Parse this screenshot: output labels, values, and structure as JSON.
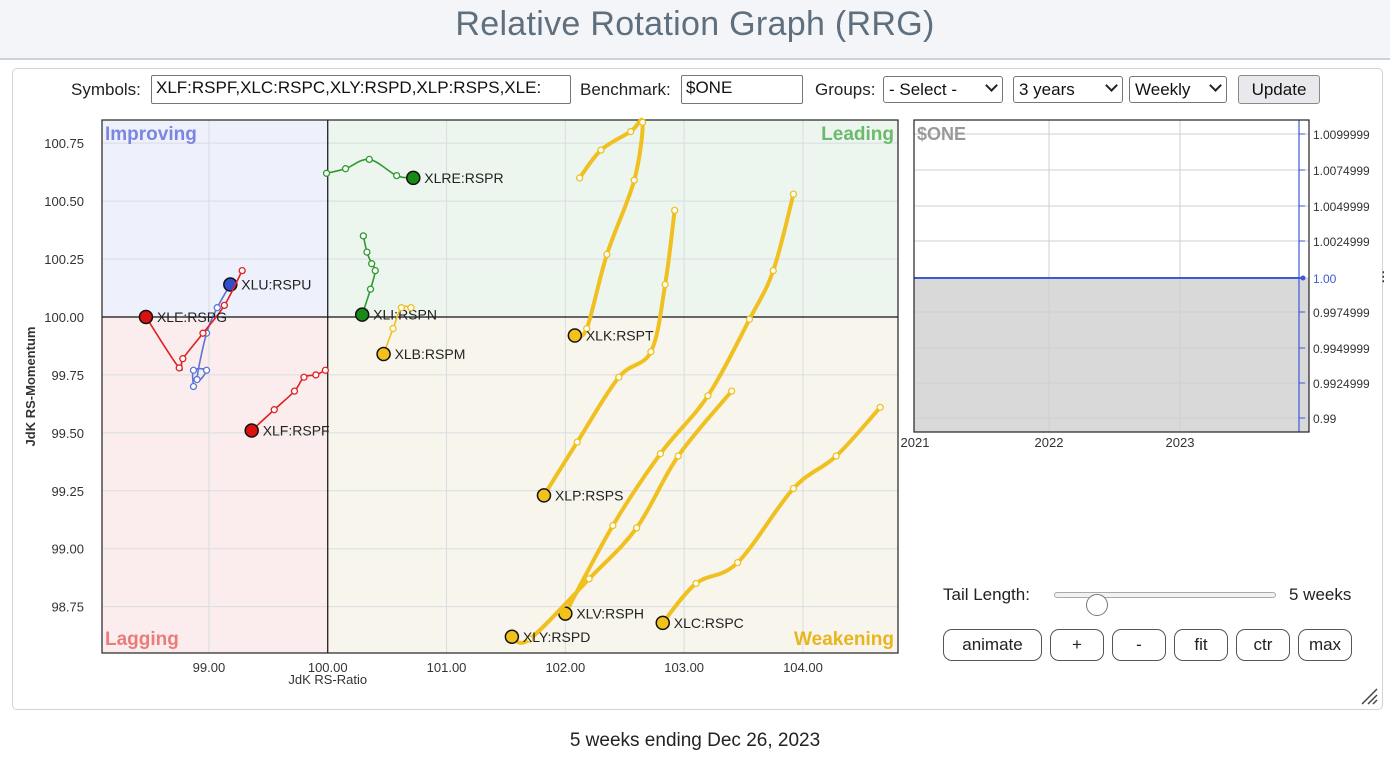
{
  "page_title": "Relative Rotation Graph (RRG)",
  "controls": {
    "symbols_label": "Symbols:",
    "symbols_value": "XLF:RSPF,XLC:RSPC,XLY:RSPD,XLP:RSPS,XLE:",
    "benchmark_label": "Benchmark:",
    "benchmark_value": "$ONE",
    "groups_label": "Groups:",
    "groups_selected": "- Select -",
    "period_selected": "3 years",
    "interval_selected": "Weekly",
    "update_label": "Update"
  },
  "chart_data": {
    "type": "scatter",
    "xlabel": "JdK RS-Ratio",
    "ylabel": "JdK RS-Momentum",
    "x_ticks": [
      "99.00",
      "100.00",
      "101.00",
      "102.00",
      "103.00",
      "104.00"
    ],
    "y_ticks": [
      "100.75",
      "100.50",
      "100.25",
      "100.00",
      "99.75",
      "99.50",
      "99.25",
      "99.00",
      "98.75"
    ],
    "xlim": [
      98.1,
      104.8
    ],
    "ylim": [
      98.55,
      100.85
    ],
    "center": [
      100,
      100
    ],
    "quadrants": [
      {
        "name": "Improving",
        "color": "#7a86e0",
        "bg": "#eef0fb"
      },
      {
        "name": "Leading",
        "color": "#6cba6c",
        "bg": "#ecf5ee"
      },
      {
        "name": "Lagging",
        "color": "#ea7c7c",
        "bg": "#fbeded"
      },
      {
        "name": "Weakening",
        "color": "#e8b51f",
        "bg": "#f8f6ec"
      }
    ],
    "series": [
      {
        "name": "XLRE:RSPR",
        "color": "#2e9a2e",
        "head_color": "#178a17",
        "weight": "thin",
        "points": [
          [
            99.99,
            100.62
          ],
          [
            100.15,
            100.64
          ],
          [
            100.35,
            100.68
          ],
          [
            100.58,
            100.61
          ],
          [
            100.72,
            100.6
          ]
        ]
      },
      {
        "name": "XLI:RSPN",
        "color": "#2e9a2e",
        "head_color": "#178a17",
        "weight": "thin",
        "points": [
          [
            100.3,
            100.35
          ],
          [
            100.33,
            100.28
          ],
          [
            100.37,
            100.23
          ],
          [
            100.4,
            100.2
          ],
          [
            100.36,
            100.12
          ],
          [
            100.29,
            100.01
          ]
        ]
      },
      {
        "name": "XLU:RSPU",
        "color": "#5b74d8",
        "head_color": "#2f4fd0",
        "weight": "thin",
        "points": [
          [
            98.87,
            99.7
          ],
          [
            98.87,
            99.77
          ],
          [
            98.98,
            99.77
          ],
          [
            98.9,
            99.73
          ],
          [
            98.98,
            99.93
          ],
          [
            99.07,
            100.04
          ],
          [
            99.18,
            100.14
          ]
        ]
      },
      {
        "name": "XLE:RSPG",
        "color": "#e02020",
        "head_color": "#dd1111",
        "weight": "thin",
        "points": [
          [
            99.28,
            100.2
          ],
          [
            99.13,
            100.05
          ],
          [
            98.95,
            99.93
          ],
          [
            98.78,
            99.82
          ],
          [
            98.75,
            99.78
          ],
          [
            98.47,
            100.0
          ]
        ]
      },
      {
        "name": "XLF:RSPF",
        "color": "#e02020",
        "head_color": "#dd1111",
        "weight": "thin",
        "points": [
          [
            99.98,
            99.77
          ],
          [
            99.9,
            99.75
          ],
          [
            99.8,
            99.74
          ],
          [
            99.72,
            99.68
          ],
          [
            99.55,
            99.6
          ],
          [
            99.36,
            99.51
          ]
        ]
      },
      {
        "name": "XLB:RSPM",
        "color": "#f0c020",
        "head_color": "#f2c21b",
        "weight": "thin",
        "points": [
          [
            100.7,
            100.04
          ],
          [
            100.62,
            100.04
          ],
          [
            100.55,
            99.95
          ],
          [
            100.47,
            99.84
          ]
        ]
      },
      {
        "name": "XLK:RSPT",
        "color": "#f0c020",
        "head_color": "#f2c21b",
        "weight": "thick",
        "points": [
          [
            102.12,
            100.6
          ],
          [
            102.3,
            100.72
          ],
          [
            102.55,
            100.8
          ],
          [
            102.65,
            100.84
          ],
          [
            102.58,
            100.59
          ],
          [
            102.35,
            100.27
          ],
          [
            102.18,
            99.95
          ],
          [
            102.08,
            99.92
          ]
        ]
      },
      {
        "name": "XLP:RSPS",
        "color": "#f0c020",
        "head_color": "#f2c21b",
        "weight": "thick",
        "points": [
          [
            102.92,
            100.46
          ],
          [
            102.84,
            100.14
          ],
          [
            102.72,
            99.85
          ],
          [
            102.45,
            99.74
          ],
          [
            102.1,
            99.46
          ],
          [
            101.82,
            99.23
          ]
        ]
      },
      {
        "name": "XLV:RSPH",
        "color": "#f0c020",
        "head_color": "#f2c21b",
        "weight": "thick",
        "points": [
          [
            103.92,
            100.53
          ],
          [
            103.75,
            100.2
          ],
          [
            103.55,
            99.99
          ],
          [
            103.2,
            99.66
          ],
          [
            102.8,
            99.41
          ],
          [
            102.4,
            99.1
          ],
          [
            102.0,
            98.72
          ]
        ]
      },
      {
        "name": "XLY:RSPD",
        "color": "#f0c020",
        "head_color": "#f2c21b",
        "weight": "thick",
        "points": [
          [
            103.4,
            99.68
          ],
          [
            102.95,
            99.4
          ],
          [
            102.6,
            99.09
          ],
          [
            102.2,
            98.87
          ],
          [
            101.7,
            98.61
          ],
          [
            101.55,
            98.62
          ]
        ]
      },
      {
        "name": "XLC:RSPC",
        "color": "#f0c020",
        "head_color": "#f2c21b",
        "weight": "thick",
        "points": [
          [
            104.65,
            99.61
          ],
          [
            104.28,
            99.4
          ],
          [
            103.92,
            99.26
          ],
          [
            103.45,
            98.94
          ],
          [
            103.1,
            98.85
          ],
          [
            102.82,
            98.68
          ]
        ]
      }
    ]
  },
  "benchmark_chart": {
    "label": "$ONE",
    "y_ticks": [
      "1.0099999",
      "1.0074999",
      "1.0049999",
      "1.0024999",
      "1.00",
      "0.9974999",
      "0.9949999",
      "0.9924999",
      "0.99"
    ],
    "x_ticks": [
      "2021",
      "2022",
      "2023"
    ],
    "value": "1.00",
    "line_color": "#3b5bd6"
  },
  "tail": {
    "label": "Tail Length:",
    "value": "5 weeks",
    "weeks": 5,
    "max_weeks": 30
  },
  "buttons": {
    "animate": "animate",
    "plus": "+",
    "minus": "-",
    "fit": "fit",
    "ctr": "ctr",
    "max": "max"
  },
  "footer_note": "5 weeks ending Dec 26, 2023"
}
